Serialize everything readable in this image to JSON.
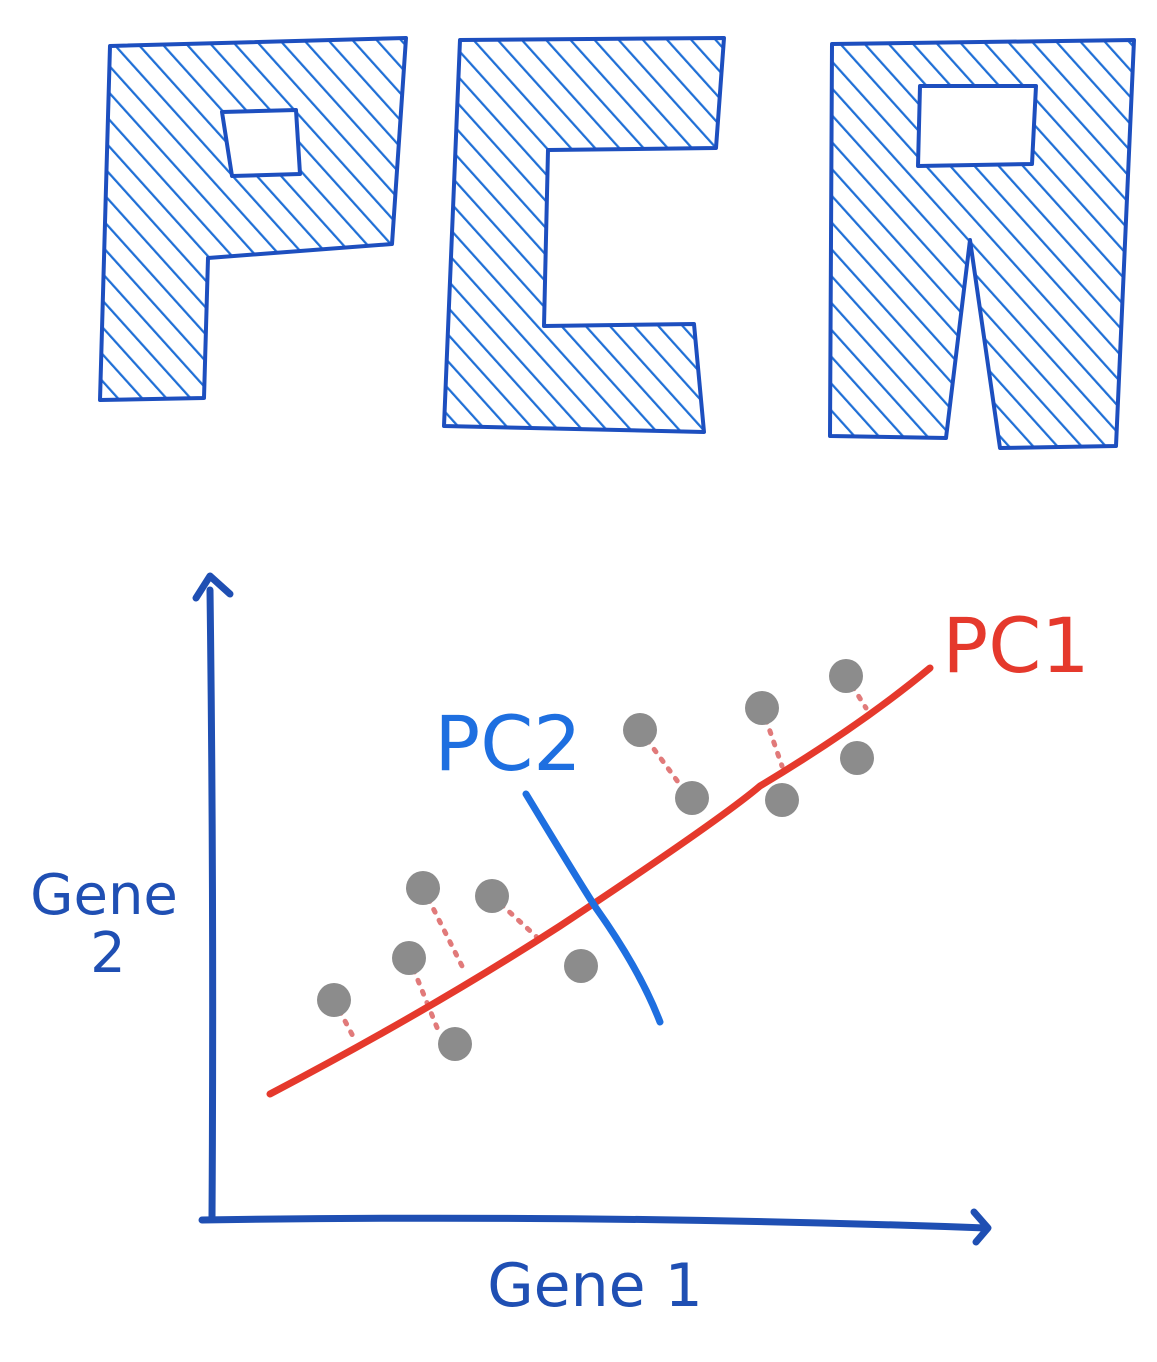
{
  "title": {
    "letters": [
      "P",
      "C",
      "A"
    ]
  },
  "diagram": {
    "x_axis_label": "Gene 1",
    "y_axis_label_line1": "Gene",
    "y_axis_label_line2": "2",
    "pc1_label": "PC1",
    "pc2_label": "PC2",
    "point_count": 12
  },
  "colors": {
    "title_blue": "#1f6fd6",
    "title_outline": "#1d4fbf",
    "axis_blue": "#1f4fb3",
    "pc1_red": "#e5392c",
    "pc2_blue": "#1e6fe0",
    "point_gray": "#8c8c8c",
    "projection_pink": "#e17a7a"
  }
}
